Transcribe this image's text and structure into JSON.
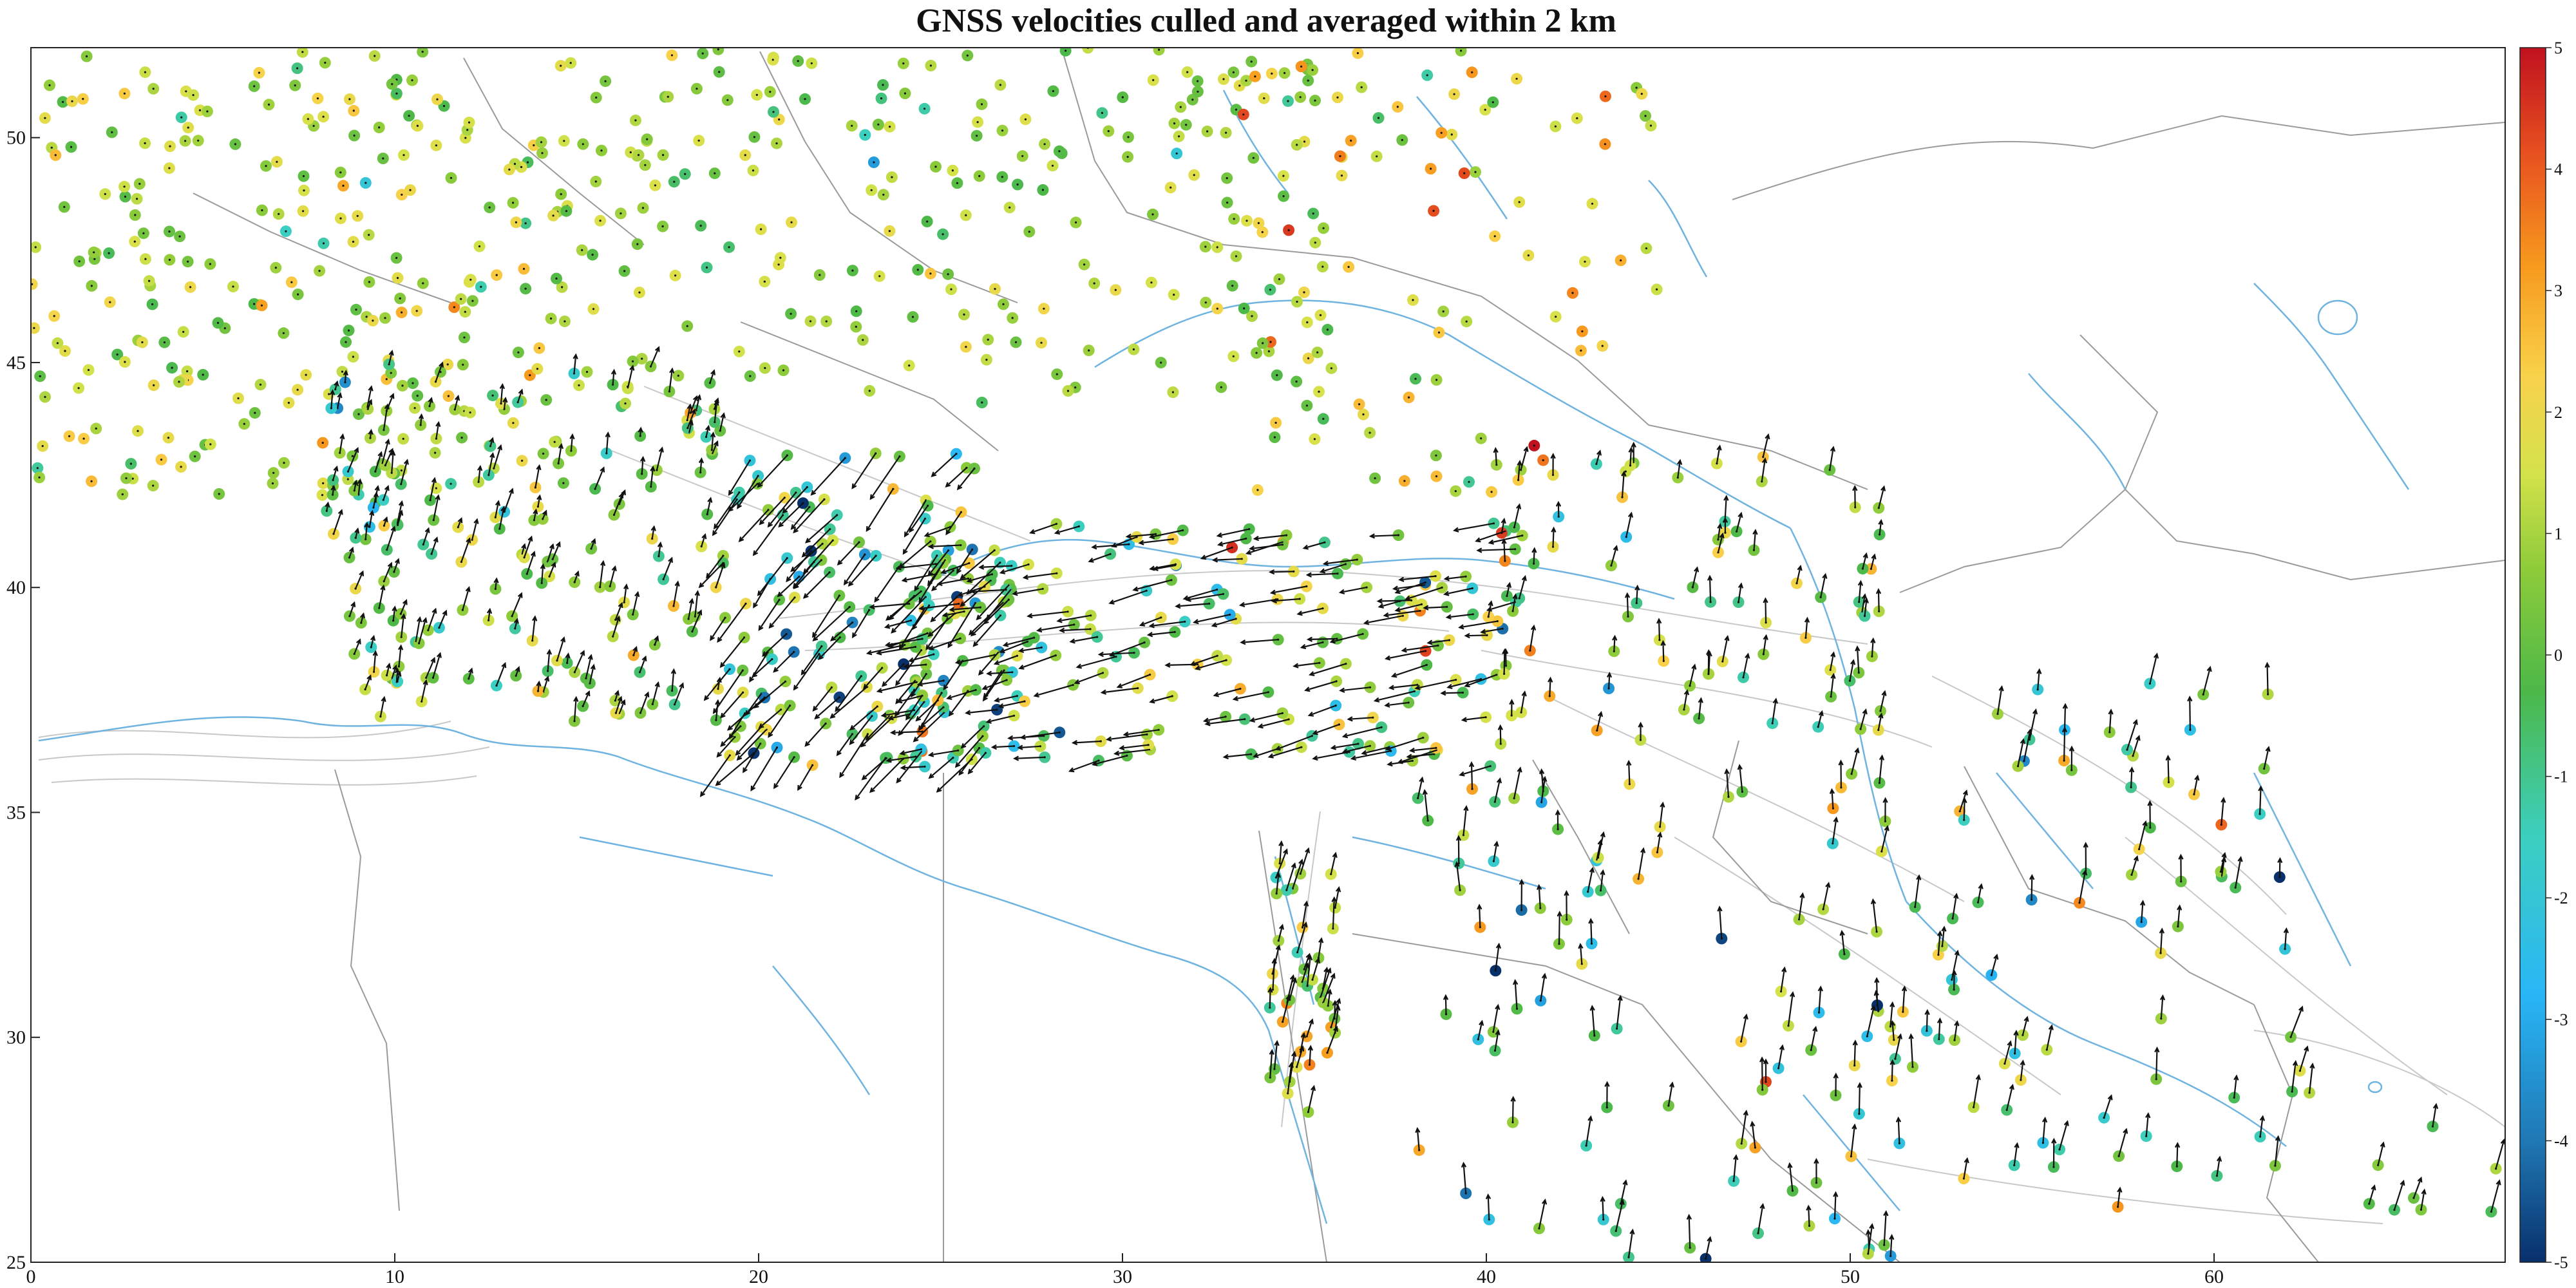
{
  "title": "GNSS velocities culled and averaged within 2 km",
  "axes": {
    "x_ticks": [
      "0",
      "10",
      "20",
      "30",
      "40",
      "50",
      "60"
    ],
    "y_ticks": [
      "50",
      "45",
      "40",
      "35",
      "30",
      "25"
    ]
  },
  "colorbar": {
    "ticks": [
      "5",
      "4",
      "3",
      "2",
      "1",
      "0",
      "-1",
      "-2",
      "-3",
      "-4",
      "-5"
    ],
    "min": -5,
    "max": 5,
    "palette": [
      "#08306b",
      "#1f78b4",
      "#29b6f6",
      "#3ccfc0",
      "#4cb848",
      "#8dcb3a",
      "#d4e24a",
      "#f8d24a",
      "#f79a1e",
      "#e8531f",
      "#c0111f"
    ]
  },
  "chart_data": {
    "type": "scatter",
    "title": "GNSS velocities culled and averaged within 2 km",
    "xlabel": "",
    "ylabel": "",
    "xlim": [
      0,
      68
    ],
    "ylim": [
      25,
      52
    ],
    "x_ticks": [
      0,
      10,
      20,
      30,
      40,
      50,
      60
    ],
    "y_ticks": [
      25,
      30,
      35,
      40,
      45,
      50
    ],
    "color_scale": {
      "min": -5,
      "max": 5,
      "colormap": "jet-like"
    },
    "clusters": [
      {
        "name": "",
        "x_range": [
          0,
          15
        ],
        "y_range": [
          42,
          52
        ],
        "count": 260,
        "v_mean": 0.5,
        "v_sd": 1.1,
        "arrows": false
      },
      {
        "name": "",
        "x_range": [
          8,
          19
        ],
        "y_range": [
          37,
          45
        ],
        "count": 170,
        "v_mean": -0.3,
        "v_sd": 1.3,
        "arrows": true,
        "arrow_dir": [
          0.25,
          1
        ],
        "arrow_len": [
          0.3,
          1.0
        ]
      },
      {
        "name": "",
        "x_range": [
          15,
          36
        ],
        "y_range": [
          44,
          52
        ],
        "count": 220,
        "v_mean": 0.2,
        "v_sd": 0.9,
        "arrows": false
      },
      {
        "name": "",
        "x_range": [
          33,
          45
        ],
        "y_range": [
          42,
          52
        ],
        "count": 90,
        "v_mean": 1.3,
        "v_sd": 1.6,
        "arrows": false
      },
      {
        "name": "",
        "x_range": [
          19,
          27
        ],
        "y_range": [
          36,
          43
        ],
        "count": 140,
        "v_mean": -0.8,
        "v_sd": 1.9,
        "arrows": true,
        "arrow_dir": [
          -0.85,
          -1
        ],
        "arrow_len": [
          1.0,
          2.0
        ]
      },
      {
        "name": "",
        "x_range": [
          24,
          41
        ],
        "y_range": [
          36,
          41.5
        ],
        "count": 180,
        "v_mean": -0.4,
        "v_sd": 1.7,
        "arrows": true,
        "arrow_dir": [
          -1,
          -0.2
        ],
        "arrow_len": [
          0.8,
          1.6
        ]
      },
      {
        "name": "",
        "x_range": [
          40,
          51
        ],
        "y_range": [
          36.5,
          43
        ],
        "count": 80,
        "v_mean": 0.2,
        "v_sd": 1.4,
        "arrows": true,
        "arrow_dir": [
          0.1,
          1
        ],
        "arrow_len": [
          0.5,
          1.0
        ]
      },
      {
        "name": "",
        "x_range": [
          34,
          36
        ],
        "y_range": [
          28,
          34
        ],
        "count": 40,
        "v_mean": 0.6,
        "v_sd": 1.5,
        "arrows": true,
        "arrow_dir": [
          0.2,
          1
        ],
        "arrow_len": [
          0.6,
          1.2
        ]
      },
      {
        "name": "",
        "x_range": [
          38,
          52
        ],
        "y_range": [
          25,
          36
        ],
        "count": 90,
        "v_mean": -0.8,
        "v_sd": 1.8,
        "arrows": true,
        "arrow_dir": [
          0.05,
          1
        ],
        "arrow_len": [
          0.7,
          1.3
        ]
      },
      {
        "name": "",
        "x_range": [
          50,
          62
        ],
        "y_range": [
          26,
          38
        ],
        "count": 80,
        "v_mean": -0.5,
        "v_sd": 1.9,
        "arrows": true,
        "arrow_dir": [
          0.15,
          1
        ],
        "arrow_len": [
          0.7,
          1.3
        ]
      },
      {
        "name": "",
        "x_range": [
          62,
          68
        ],
        "y_range": [
          26,
          31
        ],
        "count": 12,
        "v_mean": 0,
        "v_sd": 1,
        "arrows": true,
        "arrow_dir": [
          0.2,
          1
        ],
        "arrow_len": [
          0.7,
          1.3
        ]
      }
    ]
  },
  "map_layers": {
    "coastline_color": "#6fb3e0",
    "border_color": "#9a9a9a",
    "fault_color": "#c8c8c8",
    "arrow_color": "#111111"
  }
}
